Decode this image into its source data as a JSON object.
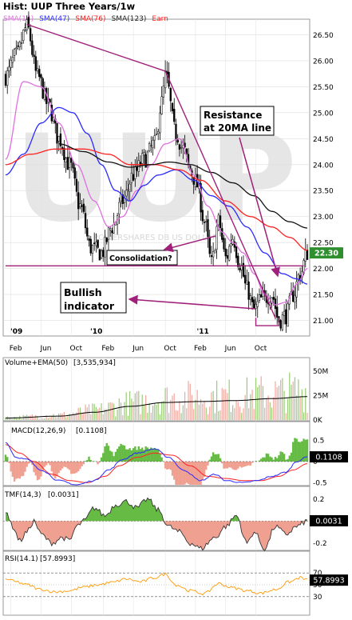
{
  "title": "Hist: UUP Three Years/1w",
  "legend": [
    {
      "label": "SMA(14)",
      "color": "#e070e0"
    },
    {
      "label": "SMA(47)",
      "color": "#2a2aff"
    },
    {
      "label": "SMA(76)",
      "color": "#ff2020"
    },
    {
      "label": "SMA(123)",
      "color": "#222222"
    },
    {
      "label": "Earn",
      "color": "#ff2020"
    }
  ],
  "watermark": "UUP",
  "watermark_sub": "POWERSHARES DB US DOLLAR",
  "colors": {
    "trend": "#a0207a",
    "hist_pos": "#66bb44",
    "hist_neg": "#f0a090",
    "price_box": "#2f8f2f",
    "macd": "#2a2aff",
    "signal": "#ff2020",
    "rsi": "#ff9900",
    "tmf_line": "#333333"
  },
  "annotations": {
    "resistance": [
      "Resistance",
      "at 20MA line"
    ],
    "consolidation": "Consolidation?",
    "bullish": [
      "Bullish",
      "indicator"
    ]
  },
  "chart_data": {
    "type": "line",
    "x_labels": [
      "Feb",
      "Jun",
      "Oct",
      "Feb",
      "Jun",
      "Oct",
      "Feb",
      "Jun",
      "Oct"
    ],
    "year_labels": [
      "'09",
      "'10",
      "'11"
    ],
    "price": {
      "ylim": [
        20.7,
        26.8
      ],
      "y_ticks": [
        "26.50",
        "26.00",
        "25.50",
        "25.00",
        "24.50",
        "24.00",
        "23.50",
        "23.00",
        "22.50",
        "22.00",
        "21.50",
        "21.00"
      ],
      "last_price": "22.30",
      "close_knots": [
        [
          0,
          25.7
        ],
        [
          6,
          26.1
        ],
        [
          12,
          26.65
        ],
        [
          18,
          25.7
        ],
        [
          24,
          25.15
        ],
        [
          30,
          24.5
        ],
        [
          36,
          24.0
        ],
        [
          42,
          23.2
        ],
        [
          48,
          22.4
        ],
        [
          54,
          22.3
        ],
        [
          60,
          22.8
        ],
        [
          66,
          23.3
        ],
        [
          72,
          23.8
        ],
        [
          78,
          24.1
        ],
        [
          84,
          24.4
        ],
        [
          88,
          25.2
        ],
        [
          90,
          25.7
        ],
        [
          96,
          24.6
        ],
        [
          100,
          24.3
        ],
        [
          104,
          23.9
        ],
        [
          108,
          23.6
        ],
        [
          112,
          22.9
        ],
        [
          116,
          22.1
        ],
        [
          120,
          22.9
        ],
        [
          124,
          22.2
        ],
        [
          128,
          22.6
        ],
        [
          132,
          22.1
        ],
        [
          136,
          21.6
        ],
        [
          140,
          21.2
        ],
        [
          144,
          21.4
        ],
        [
          150,
          21.5
        ],
        [
          154,
          21.0
        ],
        [
          158,
          21.1
        ],
        [
          162,
          21.5
        ],
        [
          166,
          21.9
        ],
        [
          170,
          22.3
        ]
      ],
      "sma": [
        {
          "name": "SMA(14)",
          "knots": [
            [
              0,
              24.1
            ],
            [
              10,
              25.6
            ],
            [
              20,
              25.5
            ],
            [
              30,
              24.8
            ],
            [
              40,
              24.0
            ],
            [
              50,
              23.3
            ],
            [
              58,
              22.8
            ],
            [
              66,
              23.0
            ],
            [
              74,
              23.5
            ],
            [
              82,
              24.0
            ],
            [
              90,
              24.4
            ],
            [
              98,
              24.5
            ],
            [
              106,
              23.8
            ],
            [
              114,
              23.2
            ],
            [
              122,
              22.7
            ],
            [
              128,
              22.5
            ],
            [
              134,
              22.3
            ],
            [
              140,
              21.9
            ],
            [
              146,
              21.5
            ],
            [
              152,
              21.3
            ],
            [
              158,
              21.35
            ],
            [
              164,
              21.7
            ],
            [
              170,
              22.0
            ]
          ]
        },
        {
          "name": "SMA(47)",
          "knots": [
            [
              0,
              23.8
            ],
            [
              10,
              24.2
            ],
            [
              20,
              24.8
            ],
            [
              30,
              25.1
            ],
            [
              38,
              25.0
            ],
            [
              46,
              24.6
            ],
            [
              54,
              24.0
            ],
            [
              62,
              23.5
            ],
            [
              70,
              23.3
            ],
            [
              78,
              23.6
            ],
            [
              86,
              23.8
            ],
            [
              96,
              23.9
            ],
            [
              106,
              23.7
            ],
            [
              116,
              23.4
            ],
            [
              126,
              23.2
            ],
            [
              136,
              22.8
            ],
            [
              146,
              22.3
            ],
            [
              156,
              21.9
            ],
            [
              164,
              21.8
            ],
            [
              170,
              21.7
            ]
          ]
        },
        {
          "name": "SMA(76)",
          "knots": [
            [
              0,
              24.0
            ],
            [
              14,
              24.2
            ],
            [
              28,
              24.3
            ],
            [
              44,
              24.3
            ],
            [
              58,
              24.2
            ],
            [
              70,
              24.0
            ],
            [
              84,
              24.0
            ],
            [
              98,
              23.9
            ],
            [
              110,
              23.7
            ],
            [
              124,
              23.3
            ],
            [
              138,
              23.0
            ],
            [
              150,
              22.8
            ],
            [
              160,
              22.6
            ],
            [
              170,
              22.35
            ]
          ]
        },
        {
          "name": "SMA(123)",
          "knots": [
            [
              30,
              24.4
            ],
            [
              44,
              24.25
            ],
            [
              58,
              24.05
            ],
            [
              70,
              23.95
            ],
            [
              82,
              24.0
            ],
            [
              92,
              24.05
            ],
            [
              104,
              24.0
            ],
            [
              116,
              23.85
            ],
            [
              128,
              23.65
            ],
            [
              140,
              23.4
            ],
            [
              150,
              23.1
            ],
            [
              160,
              22.9
            ],
            [
              170,
              22.78
            ]
          ]
        }
      ],
      "trendlines": [
        {
          "from": [
            12,
            26.7
          ],
          "to": [
            90,
            25.8
          ]
        },
        {
          "from": [
            90,
            25.8
          ],
          "to": [
            152,
            21.05
          ]
        },
        {
          "from": [
            0,
            22.05
          ],
          "to": [
            168,
            22.05
          ]
        }
      ]
    },
    "volume": {
      "title": "Volume+EMA(50)",
      "value": "3,535,934",
      "ylim": [
        0,
        60
      ],
      "y_ticks": [
        "50M",
        "25M",
        "0K"
      ],
      "ema_knots": [
        [
          0,
          2
        ],
        [
          30,
          4
        ],
        [
          50,
          8
        ],
        [
          70,
          14
        ],
        [
          90,
          18
        ],
        [
          110,
          19
        ],
        [
          130,
          20
        ],
        [
          150,
          22
        ],
        [
          170,
          24
        ]
      ]
    },
    "macd": {
      "title": "MACD(12,26,9)",
      "value": "0.1108",
      "ylim": [
        -0.55,
        0.85
      ],
      "y_ticks": [
        "0.5",
        "0",
        "-0.5"
      ],
      "macd_knots": [
        [
          0,
          0.45
        ],
        [
          6,
          0.1
        ],
        [
          12,
          0.05
        ],
        [
          20,
          -0.2
        ],
        [
          30,
          -0.45
        ],
        [
          40,
          -0.55
        ],
        [
          50,
          -0.45
        ],
        [
          58,
          -0.2
        ],
        [
          66,
          0.05
        ],
        [
          74,
          0.2
        ],
        [
          84,
          0.3
        ],
        [
          92,
          0.1
        ],
        [
          100,
          -0.2
        ],
        [
          110,
          -0.45
        ],
        [
          118,
          -0.3
        ],
        [
          124,
          -0.45
        ],
        [
          134,
          -0.5
        ],
        [
          142,
          -0.45
        ],
        [
          150,
          -0.35
        ],
        [
          158,
          -0.25
        ],
        [
          164,
          0.0
        ],
        [
          170,
          0.11
        ]
      ],
      "signal_knots": [
        [
          0,
          0.4
        ],
        [
          8,
          0.2
        ],
        [
          16,
          0.0
        ],
        [
          26,
          -0.3
        ],
        [
          36,
          -0.45
        ],
        [
          46,
          -0.5
        ],
        [
          56,
          -0.35
        ],
        [
          64,
          -0.1
        ],
        [
          74,
          0.1
        ],
        [
          84,
          0.2
        ],
        [
          94,
          0.15
        ],
        [
          104,
          -0.1
        ],
        [
          114,
          -0.35
        ],
        [
          124,
          -0.4
        ],
        [
          134,
          -0.45
        ],
        [
          144,
          -0.45
        ],
        [
          154,
          -0.35
        ],
        [
          162,
          -0.2
        ],
        [
          170,
          -0.05
        ]
      ]
    },
    "tmf": {
      "title": "TMF(14,3)",
      "value": "0.0031",
      "ylim": [
        -0.26,
        0.28
      ],
      "y_ticks": [
        "0.2",
        "0",
        "-0.2"
      ],
      "knots": [
        [
          0,
          0.1
        ],
        [
          4,
          -0.05
        ],
        [
          8,
          -0.18
        ],
        [
          12,
          -0.1
        ],
        [
          16,
          0.0
        ],
        [
          20,
          -0.12
        ],
        [
          26,
          -0.2
        ],
        [
          32,
          -0.15
        ],
        [
          36,
          -0.18
        ],
        [
          40,
          -0.05
        ],
        [
          44,
          0.0
        ],
        [
          50,
          0.12
        ],
        [
          56,
          0.05
        ],
        [
          62,
          0.15
        ],
        [
          68,
          0.18
        ],
        [
          74,
          0.12
        ],
        [
          80,
          0.2
        ],
        [
          86,
          0.1
        ],
        [
          92,
          -0.05
        ],
        [
          98,
          -0.1
        ],
        [
          104,
          -0.2
        ],
        [
          110,
          -0.25
        ],
        [
          118,
          -0.15
        ],
        [
          124,
          -0.05
        ],
        [
          130,
          0.05
        ],
        [
          136,
          -0.2
        ],
        [
          140,
          -0.1
        ],
        [
          146,
          -0.25
        ],
        [
          152,
          -0.05
        ],
        [
          158,
          -0.12
        ],
        [
          164,
          -0.05
        ],
        [
          170,
          0.0
        ]
      ]
    },
    "rsi": {
      "title": "RSI(14.1)",
      "value": "57.8993",
      "ylim": [
        0,
        100
      ],
      "y_ticks": [
        "70",
        "50",
        "30"
      ],
      "knots": [
        [
          0,
          60
        ],
        [
          6,
          55
        ],
        [
          12,
          50
        ],
        [
          20,
          42
        ],
        [
          28,
          38
        ],
        [
          36,
          40
        ],
        [
          44,
          46
        ],
        [
          52,
          50
        ],
        [
          60,
          54
        ],
        [
          68,
          60
        ],
        [
          76,
          55
        ],
        [
          84,
          62
        ],
        [
          90,
          68
        ],
        [
          96,
          50
        ],
        [
          104,
          40
        ],
        [
          112,
          35
        ],
        [
          120,
          52
        ],
        [
          128,
          45
        ],
        [
          136,
          40
        ],
        [
          144,
          36
        ],
        [
          152,
          42
        ],
        [
          160,
          55
        ],
        [
          166,
          62
        ],
        [
          170,
          58
        ]
      ]
    }
  }
}
